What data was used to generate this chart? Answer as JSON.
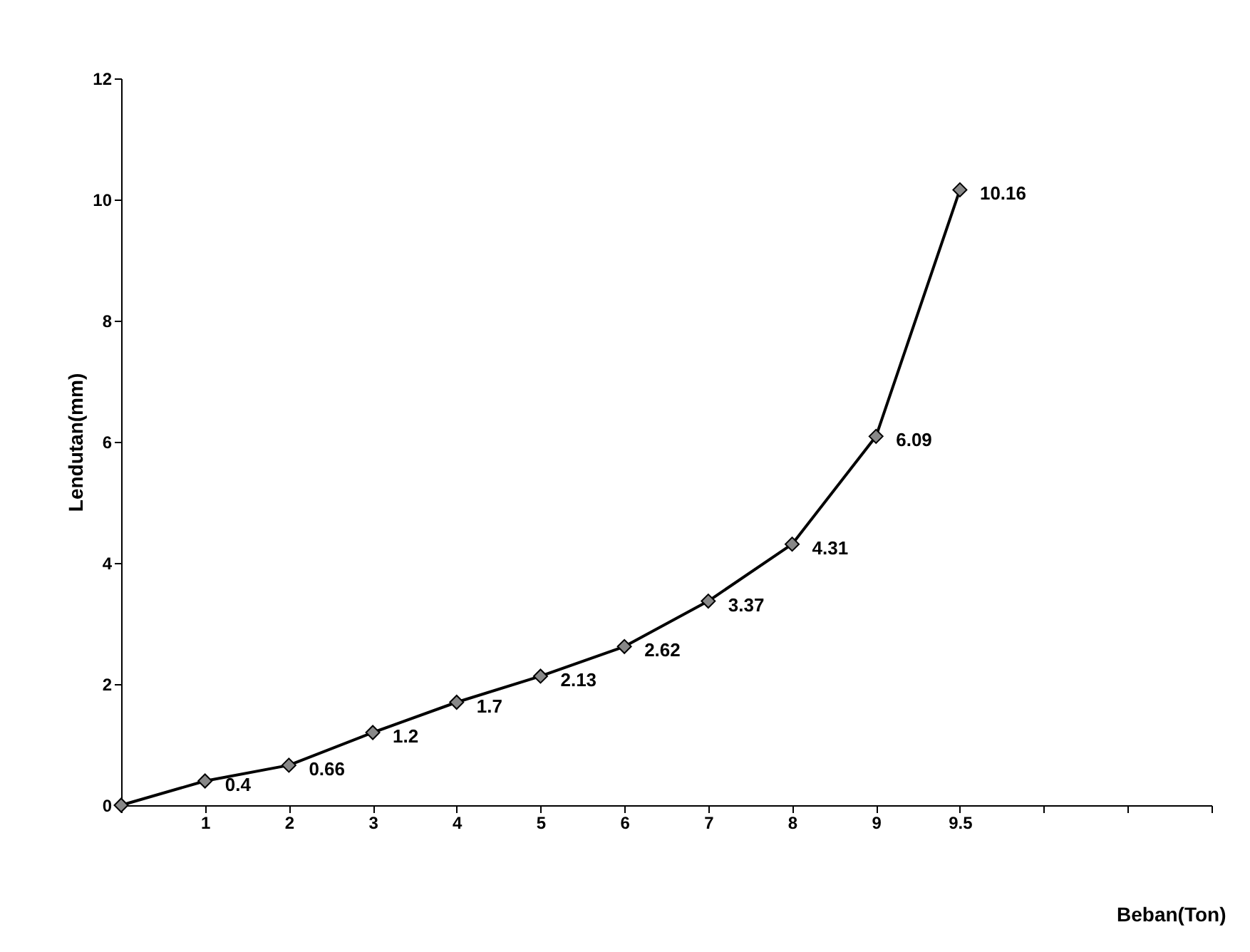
{
  "chart_data": {
    "type": "line",
    "xlabel": "Beban(Ton)",
    "ylabel": "Lendutan(mm)",
    "categories": [
      null,
      "1",
      "2",
      "3",
      "4",
      "5",
      "6",
      "7",
      "8",
      "9",
      "9.5",
      null,
      null,
      null
    ],
    "series": [
      {
        "color": "#000000",
        "values": [
          0,
          0.4,
          0.66,
          1.2,
          1.7,
          2.13,
          2.62,
          3.37,
          4.31,
          6.09,
          10.16,
          null,
          null,
          null
        ],
        "value_labels": [
          null,
          "0.4",
          "0.66",
          "1.2",
          "1.7",
          "2.13",
          "2.62",
          "3.37",
          "4.31",
          "6.09",
          "10.16",
          null,
          null,
          null
        ]
      }
    ],
    "ylim": [
      0,
      12
    ],
    "yticks": [
      0,
      2,
      4,
      6,
      8,
      10,
      12
    ],
    "grid": false,
    "marker": "diamond",
    "line_style": "solid"
  }
}
